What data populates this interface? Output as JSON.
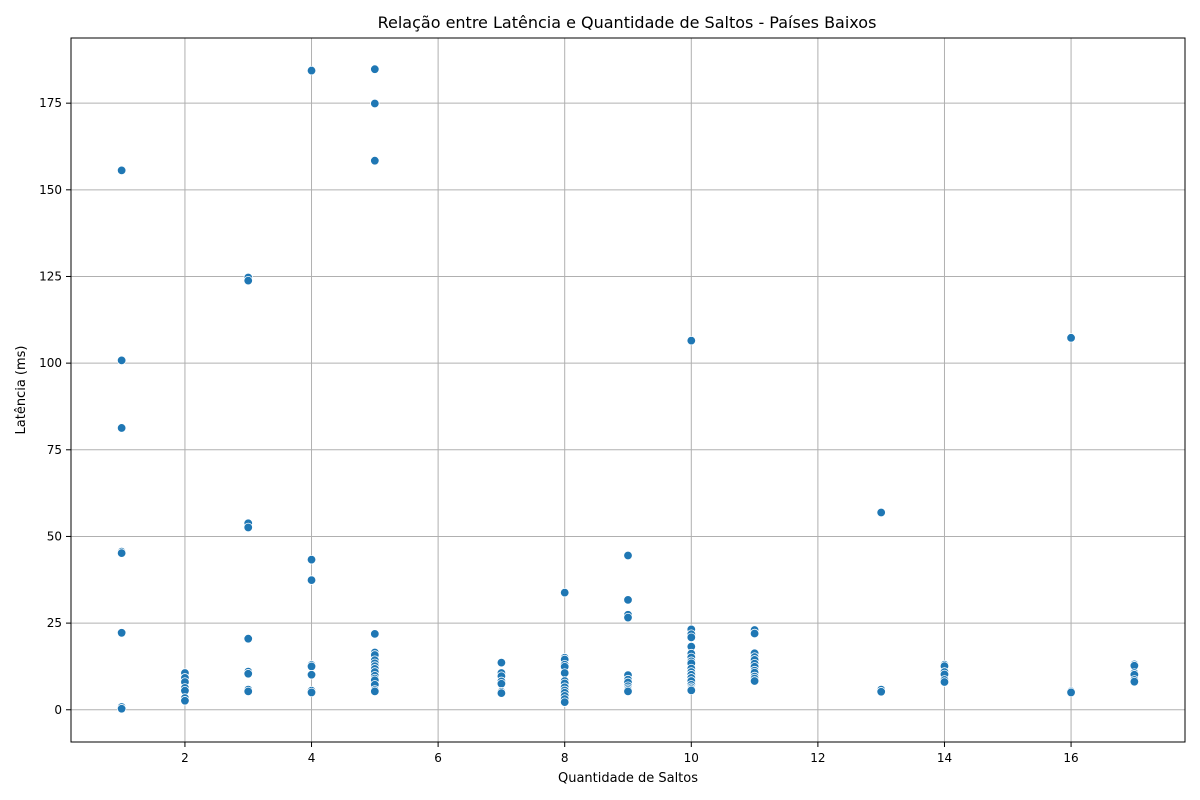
{
  "chart_data": {
    "type": "scatter",
    "title": "Relação entre Latência e Quantidade de Saltos - Países Baixos",
    "xlabel": "Quantidade de Saltos",
    "ylabel": "Latência (ms)",
    "xlim": [
      0.2,
      17.8
    ],
    "ylim": [
      -9.3,
      193.8
    ],
    "xticks": [
      2,
      4,
      6,
      8,
      10,
      12,
      14,
      16
    ],
    "yticks": [
      0,
      25,
      50,
      75,
      100,
      125,
      150,
      175
    ],
    "grid": true,
    "point_color": "#1f77b4",
    "points": [
      [
        1,
        155.6
      ],
      [
        1,
        100.8
      ],
      [
        1,
        81.3
      ],
      [
        1,
        45.6
      ],
      [
        1,
        45.2
      ],
      [
        1,
        22.2
      ],
      [
        1,
        0.8
      ],
      [
        1,
        0.3
      ],
      [
        2,
        10.6
      ],
      [
        2,
        9.2
      ],
      [
        2,
        8.0
      ],
      [
        2,
        6.3
      ],
      [
        2,
        5.5
      ],
      [
        2,
        3.4
      ],
      [
        2,
        2.6
      ],
      [
        3,
        124.7
      ],
      [
        3,
        123.8
      ],
      [
        3,
        53.8
      ],
      [
        3,
        52.6
      ],
      [
        3,
        20.5
      ],
      [
        3,
        11.0
      ],
      [
        3,
        10.4
      ],
      [
        3,
        5.8
      ],
      [
        3,
        5.3
      ],
      [
        4,
        184.4
      ],
      [
        4,
        43.3
      ],
      [
        4,
        37.4
      ],
      [
        4,
        12.9
      ],
      [
        4,
        12.5
      ],
      [
        4,
        10.1
      ],
      [
        4,
        5.5
      ],
      [
        4,
        5.0
      ],
      [
        5,
        184.8
      ],
      [
        5,
        174.9
      ],
      [
        5,
        158.4
      ],
      [
        5,
        21.9
      ],
      [
        5,
        16.5
      ],
      [
        5,
        15.8
      ],
      [
        5,
        14.3
      ],
      [
        5,
        13.4
      ],
      [
        5,
        12.6
      ],
      [
        5,
        11.8
      ],
      [
        5,
        10.9
      ],
      [
        5,
        9.8
      ],
      [
        5,
        9.0
      ],
      [
        5,
        8.5
      ],
      [
        5,
        7.2
      ],
      [
        5,
        5.7
      ],
      [
        5,
        5.3
      ],
      [
        7,
        13.6
      ],
      [
        7,
        10.6
      ],
      [
        7,
        9.7
      ],
      [
        7,
        8.2
      ],
      [
        7,
        7.5
      ],
      [
        7,
        5.2
      ],
      [
        7,
        4.8
      ],
      [
        8,
        33.8
      ],
      [
        8,
        15.0
      ],
      [
        8,
        14.5
      ],
      [
        8,
        13.0
      ],
      [
        8,
        12.4
      ],
      [
        8,
        10.6
      ],
      [
        8,
        8.3
      ],
      [
        8,
        7.6
      ],
      [
        8,
        6.5
      ],
      [
        8,
        5.6
      ],
      [
        8,
        4.9
      ],
      [
        8,
        4.0
      ],
      [
        8,
        3.1
      ],
      [
        8,
        2.2
      ],
      [
        9,
        44.5
      ],
      [
        9,
        31.7
      ],
      [
        9,
        27.4
      ],
      [
        9,
        26.6
      ],
      [
        9,
        10.0
      ],
      [
        9,
        8.7
      ],
      [
        9,
        7.9
      ],
      [
        9,
        6.8
      ],
      [
        9,
        6.2
      ],
      [
        9,
        5.7
      ],
      [
        9,
        5.3
      ],
      [
        10,
        106.5
      ],
      [
        10,
        23.2
      ],
      [
        10,
        21.8
      ],
      [
        10,
        20.9
      ],
      [
        10,
        18.2
      ],
      [
        10,
        16.2
      ],
      [
        10,
        15.1
      ],
      [
        10,
        14.0
      ],
      [
        10,
        13.4
      ],
      [
        10,
        11.9
      ],
      [
        10,
        10.9
      ],
      [
        10,
        10.1
      ],
      [
        10,
        9.2
      ],
      [
        10,
        8.3
      ],
      [
        10,
        7.2
      ],
      [
        10,
        6.5
      ],
      [
        10,
        6.0
      ],
      [
        10,
        5.6
      ],
      [
        11,
        23.0
      ],
      [
        11,
        22.0
      ],
      [
        11,
        16.3
      ],
      [
        11,
        15.2
      ],
      [
        11,
        14.4
      ],
      [
        11,
        13.3
      ],
      [
        11,
        12.4
      ],
      [
        11,
        11.3
      ],
      [
        11,
        10.7
      ],
      [
        11,
        9.6
      ],
      [
        11,
        9.0
      ],
      [
        11,
        8.3
      ],
      [
        13,
        56.9
      ],
      [
        13,
        5.8
      ],
      [
        13,
        5.2
      ],
      [
        14,
        13.0
      ],
      [
        14,
        12.6
      ],
      [
        14,
        10.9
      ],
      [
        14,
        10.2
      ],
      [
        14,
        8.6
      ],
      [
        14,
        8.0
      ],
      [
        16,
        107.3
      ],
      [
        16,
        5.3
      ],
      [
        16,
        5.0
      ],
      [
        17,
        13.1
      ],
      [
        17,
        12.7
      ],
      [
        17,
        10.6
      ],
      [
        17,
        10.1
      ],
      [
        17,
        8.6
      ],
      [
        17,
        8.1
      ]
    ]
  }
}
